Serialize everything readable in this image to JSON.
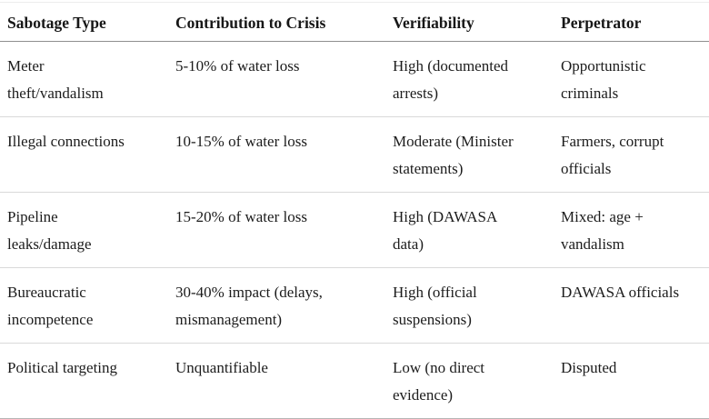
{
  "table": {
    "columns": [
      "Sabotage Type",
      "Contribution to Crisis",
      "Verifiability",
      "Perpetrator"
    ],
    "rows": [
      {
        "cells": [
          "Meter\ntheft/vandalism",
          "5-10% of water loss",
          "High (documented\narrests)",
          "Opportunistic\ncriminals"
        ]
      },
      {
        "cells": [
          "Illegal connections",
          "10-15% of water loss",
          "Moderate (Minister\nstatements)",
          "Farmers, corrupt\nofficials"
        ]
      },
      {
        "cells": [
          "Pipeline\nleaks/damage",
          "15-20% of water loss",
          "High (DAWASA\ndata)",
          "Mixed: age +\nvandalism"
        ]
      },
      {
        "cells": [
          "Bureaucratic\nincompetence",
          "30-40% impact (delays,\nmismanagement)",
          "High (official\nsuspensions)",
          "DAWASA officials"
        ]
      },
      {
        "cells": [
          "Political targeting",
          "Unquantifiable",
          "Low (no direct\nevidence)",
          "Disputed"
        ]
      }
    ]
  }
}
